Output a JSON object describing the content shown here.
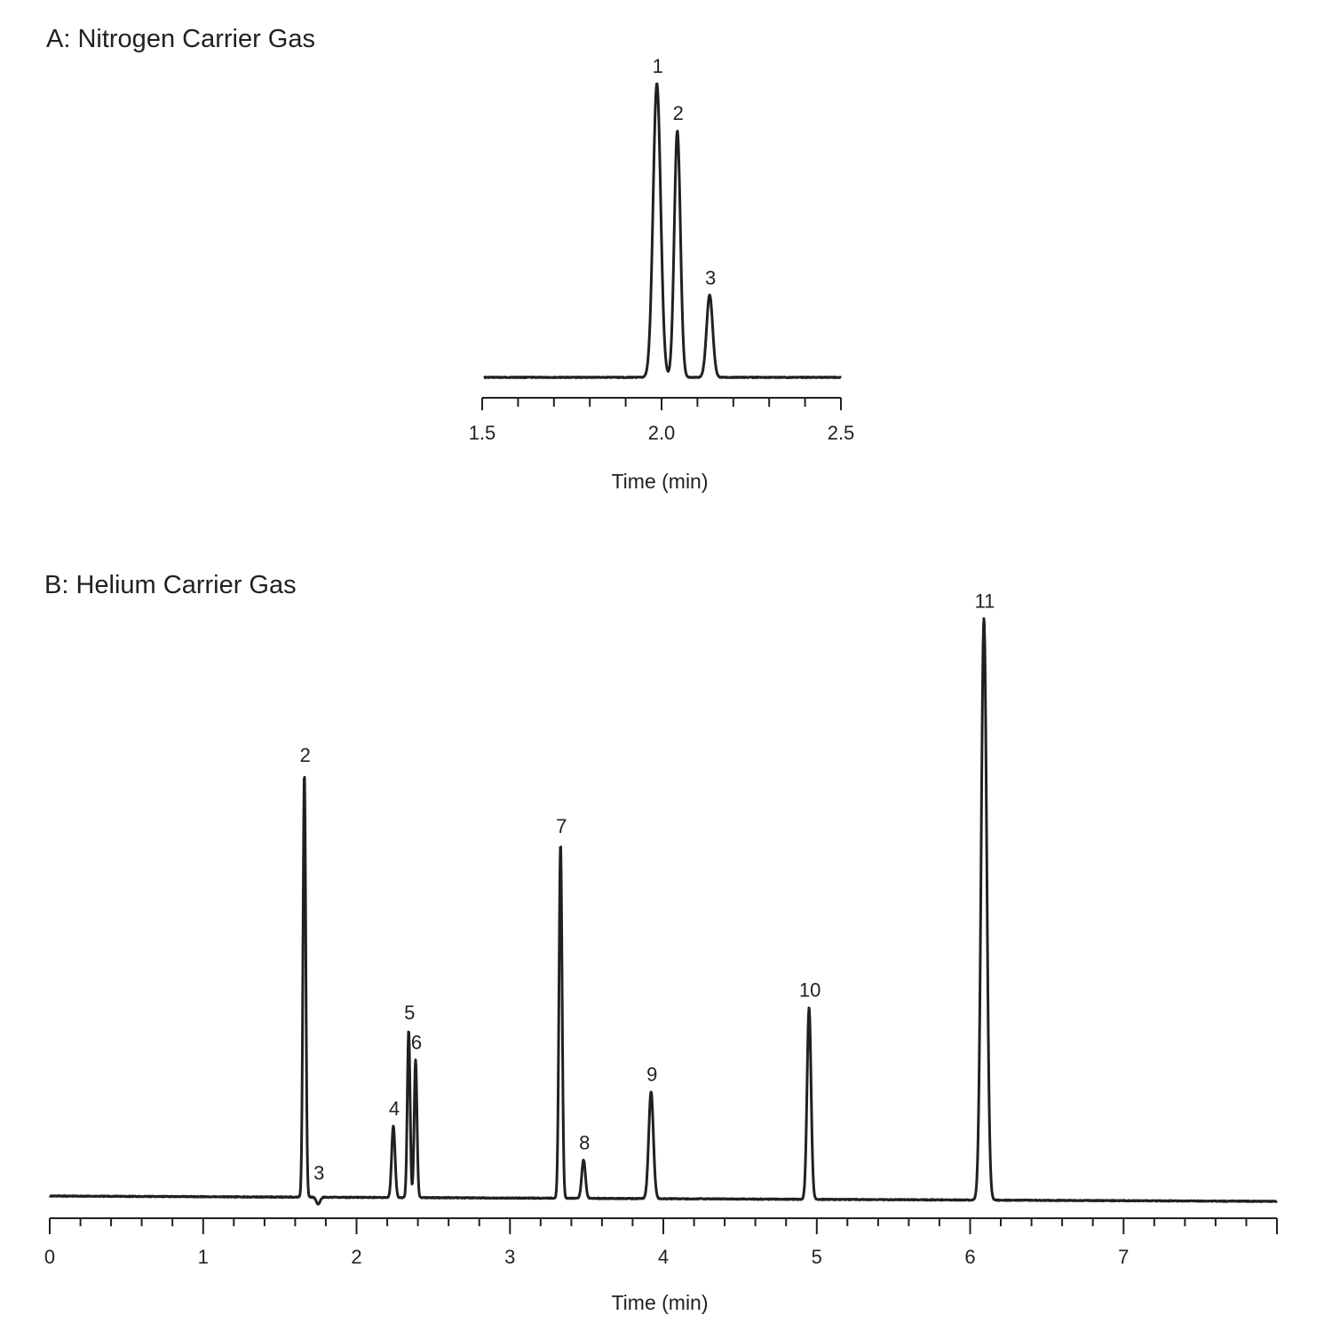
{
  "chart_data": [
    {
      "type": "line",
      "title": "A: Nitrogen Carrier Gas",
      "xlabel": "Time (min)",
      "ylabel": "",
      "xlim": [
        1.5,
        2.5
      ],
      "ylim": [
        0,
        100
      ],
      "grid": false,
      "x_ticks": [
        {
          "value": 1.5,
          "label": "1.5"
        },
        {
          "value": 1.6,
          "label": ""
        },
        {
          "value": 1.7,
          "label": ""
        },
        {
          "value": 1.8,
          "label": ""
        },
        {
          "value": 1.9,
          "label": ""
        },
        {
          "value": 2.0,
          "label": "2.0"
        },
        {
          "value": 2.1,
          "label": ""
        },
        {
          "value": 2.2,
          "label": ""
        },
        {
          "value": 2.3,
          "label": ""
        },
        {
          "value": 2.4,
          "label": ""
        },
        {
          "value": 2.5,
          "label": "2.5"
        }
      ],
      "peaks": [
        {
          "label": "1",
          "time": 1.987,
          "height": 100,
          "width": 0.0105
        },
        {
          "label": "2",
          "time": 2.044,
          "height": 84,
          "width": 0.0085
        },
        {
          "label": "3",
          "time": 2.134,
          "height": 28,
          "width": 0.0085
        }
      ]
    },
    {
      "type": "line",
      "title": "B: Helium Carrier Gas",
      "xlabel": "Time (min)",
      "ylabel": "",
      "xlim": [
        0,
        8
      ],
      "ylim": [
        0,
        100
      ],
      "grid": false,
      "x_ticks": [
        {
          "value": 0,
          "label": "0"
        },
        {
          "value": 0.2,
          "label": ""
        },
        {
          "value": 0.4,
          "label": ""
        },
        {
          "value": 0.6,
          "label": ""
        },
        {
          "value": 0.8,
          "label": ""
        },
        {
          "value": 1,
          "label": "1"
        },
        {
          "value": 1.2,
          "label": ""
        },
        {
          "value": 1.4,
          "label": ""
        },
        {
          "value": 1.6,
          "label": ""
        },
        {
          "value": 1.8,
          "label": ""
        },
        {
          "value": 2,
          "label": "2"
        },
        {
          "value": 2.2,
          "label": ""
        },
        {
          "value": 2.4,
          "label": ""
        },
        {
          "value": 2.6,
          "label": ""
        },
        {
          "value": 2.8,
          "label": ""
        },
        {
          "value": 3,
          "label": "3"
        },
        {
          "value": 3.2,
          "label": ""
        },
        {
          "value": 3.4,
          "label": ""
        },
        {
          "value": 3.6,
          "label": ""
        },
        {
          "value": 3.8,
          "label": ""
        },
        {
          "value": 4,
          "label": "4"
        },
        {
          "value": 4.2,
          "label": ""
        },
        {
          "value": 4.4,
          "label": ""
        },
        {
          "value": 4.6,
          "label": ""
        },
        {
          "value": 4.8,
          "label": ""
        },
        {
          "value": 5,
          "label": "5"
        },
        {
          "value": 5.2,
          "label": ""
        },
        {
          "value": 5.4,
          "label": ""
        },
        {
          "value": 5.6,
          "label": ""
        },
        {
          "value": 5.8,
          "label": ""
        },
        {
          "value": 6,
          "label": "6"
        },
        {
          "value": 6.2,
          "label": ""
        },
        {
          "value": 6.4,
          "label": ""
        },
        {
          "value": 6.6,
          "label": ""
        },
        {
          "value": 6.8,
          "label": ""
        },
        {
          "value": 7,
          "label": "7"
        },
        {
          "value": 7.2,
          "label": ""
        },
        {
          "value": 7.4,
          "label": ""
        },
        {
          "value": 7.6,
          "label": ""
        },
        {
          "value": 7.8,
          "label": ""
        },
        {
          "value": 8,
          "label": ""
        }
      ],
      "peaks": [
        {
          "label": "2",
          "time": 1.66,
          "height": 73,
          "width": 0.009
        },
        {
          "label": "3",
          "time": 1.75,
          "height": -1.2,
          "width": 0.012
        },
        {
          "label": "4",
          "time": 2.24,
          "height": 12.3,
          "width": 0.011
        },
        {
          "label": "5",
          "time": 2.34,
          "height": 28.8,
          "width": 0.009
        },
        {
          "label": "6",
          "time": 2.385,
          "height": 23.7,
          "width": 0.009
        },
        {
          "label": "7",
          "time": 3.33,
          "height": 61,
          "width": 0.01
        },
        {
          "label": "8",
          "time": 3.48,
          "height": 6.6,
          "width": 0.012
        },
        {
          "label": "9",
          "time": 3.92,
          "height": 18.4,
          "width": 0.015
        },
        {
          "label": "10",
          "time": 4.95,
          "height": 33,
          "width": 0.013
        },
        {
          "label": "11",
          "time": 6.09,
          "height": 100,
          "width": 0.018
        }
      ]
    }
  ]
}
